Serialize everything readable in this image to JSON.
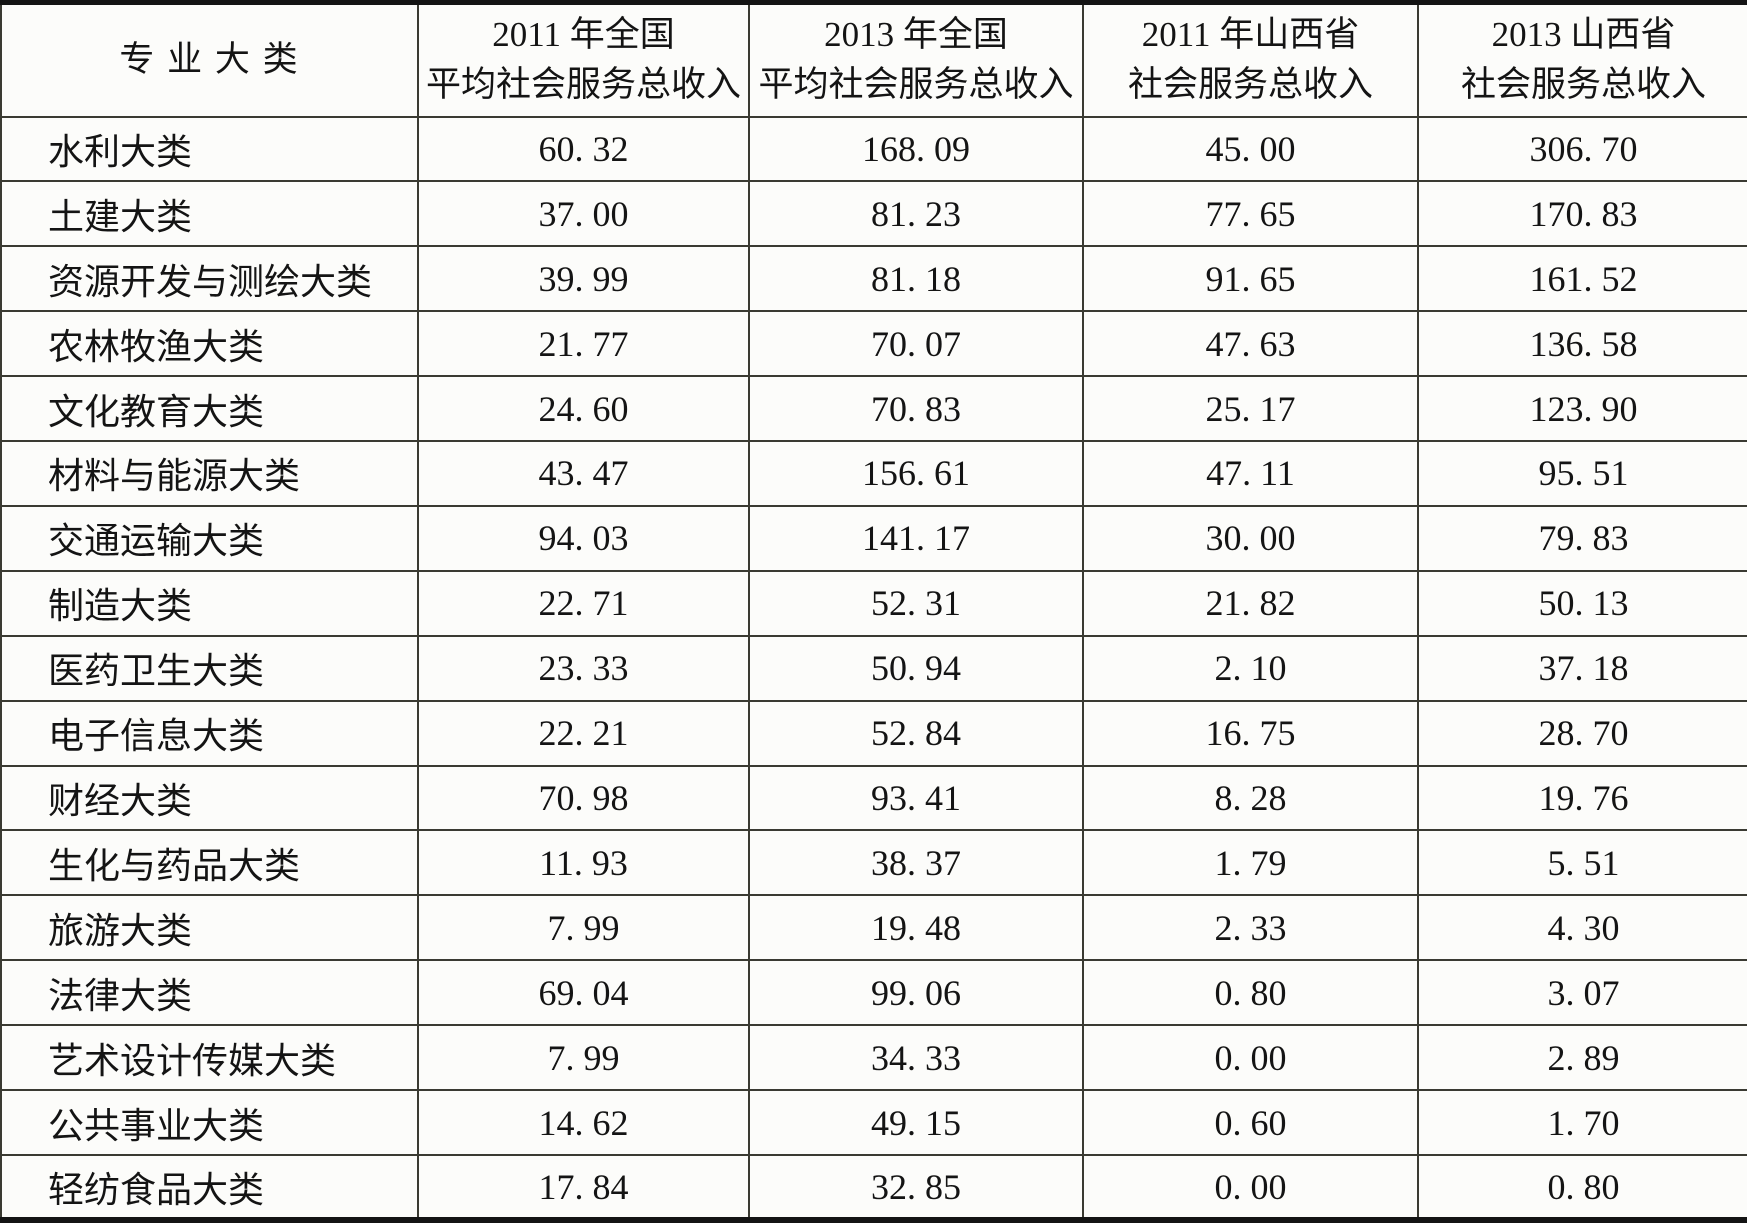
{
  "table": {
    "header": {
      "col1": "专 业 大 类",
      "col2_line1": "2011 年全国",
      "col2_line2": "平均社会服务总收入",
      "col3_line1": "2013 年全国",
      "col3_line2": "平均社会服务总收入",
      "col4_line1": "2011 年山西省",
      "col4_line2": "社会服务总收入",
      "col5_line1": "2013 山西省",
      "col5_line2": "社会服务总收入"
    },
    "rows": [
      {
        "category": "水利大类",
        "values": [
          "60. 32",
          "168. 09",
          "45. 00",
          "306. 70"
        ]
      },
      {
        "category": "土建大类",
        "values": [
          "37. 00",
          "81. 23",
          "77. 65",
          "170. 83"
        ]
      },
      {
        "category": "资源开发与测绘大类",
        "values": [
          "39. 99",
          "81. 18",
          "91. 65",
          "161. 52"
        ]
      },
      {
        "category": "农林牧渔大类",
        "values": [
          "21. 77",
          "70. 07",
          "47. 63",
          "136. 58"
        ]
      },
      {
        "category": "文化教育大类",
        "values": [
          "24. 60",
          "70. 83",
          "25. 17",
          "123. 90"
        ]
      },
      {
        "category": "材料与能源大类",
        "values": [
          "43. 47",
          "156. 61",
          "47. 11",
          "95. 51"
        ]
      },
      {
        "category": "交通运输大类",
        "values": [
          "94. 03",
          "141. 17",
          "30. 00",
          "79. 83"
        ]
      },
      {
        "category": "制造大类",
        "values": [
          "22. 71",
          "52. 31",
          "21. 82",
          "50. 13"
        ]
      },
      {
        "category": "医药卫生大类",
        "values": [
          "23. 33",
          "50. 94",
          "2. 10",
          "37. 18"
        ]
      },
      {
        "category": "电子信息大类",
        "values": [
          "22. 21",
          "52. 84",
          "16. 75",
          "28. 70"
        ]
      },
      {
        "category": "财经大类",
        "values": [
          "70. 98",
          "93. 41",
          "8. 28",
          "19. 76"
        ]
      },
      {
        "category": "生化与药品大类",
        "values": [
          "11. 93",
          "38. 37",
          "1. 79",
          "5. 51"
        ]
      },
      {
        "category": "旅游大类",
        "values": [
          "7. 99",
          "19. 48",
          "2. 33",
          "4. 30"
        ]
      },
      {
        "category": "法律大类",
        "values": [
          "69. 04",
          "99. 06",
          "0. 80",
          "3. 07"
        ]
      },
      {
        "category": "艺术设计传媒大类",
        "values": [
          "7. 99",
          "34. 33",
          "0. 00",
          "2. 89"
        ]
      },
      {
        "category": "公共事业大类",
        "values": [
          "14. 62",
          "49. 15",
          "0. 60",
          "1. 70"
        ]
      },
      {
        "category": "轻纺食品大类",
        "values": [
          "17. 84",
          "32. 85",
          "0. 00",
          "0. 80"
        ]
      }
    ]
  }
}
